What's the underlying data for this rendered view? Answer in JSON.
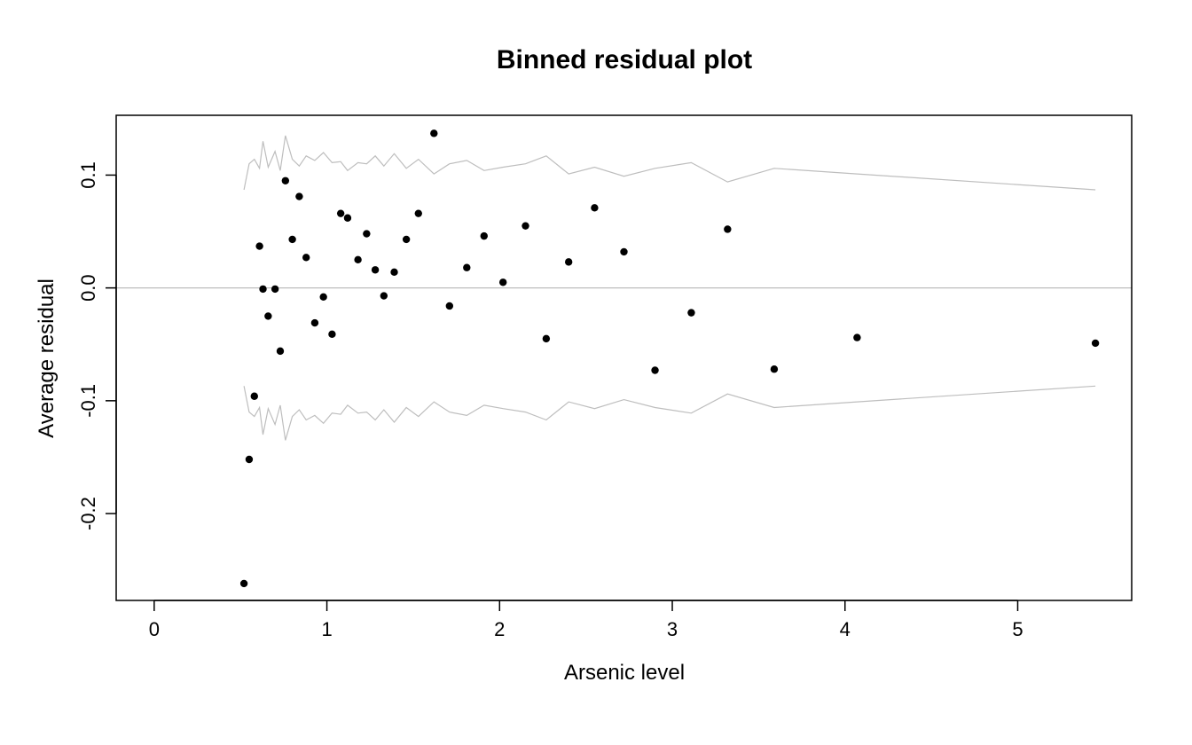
{
  "chart_data": {
    "type": "scatter",
    "title": "Binned residual plot",
    "xlabel": "Arsenic level",
    "ylabel": "Average residual",
    "xlim": [
      -0.22,
      5.66
    ],
    "ylim": [
      -0.277,
      0.153
    ],
    "x_ticks": [
      0,
      1,
      2,
      3,
      4,
      5
    ],
    "x_tick_labels": [
      "0",
      "1",
      "2",
      "3",
      "4",
      "5"
    ],
    "y_ticks": [
      -0.2,
      -0.1,
      0.0,
      0.1
    ],
    "y_tick_labels": [
      "-0.2",
      "-0.1",
      "0.0",
      "0.1"
    ],
    "grid": false,
    "reference_line": {
      "y": 0,
      "color": "#bebebe"
    },
    "colors": {
      "points": "#000000",
      "bounds": "#bebebe",
      "frame": "#000000"
    },
    "points": [
      {
        "x": 0.52,
        "y": -0.262
      },
      {
        "x": 0.55,
        "y": -0.152
      },
      {
        "x": 0.58,
        "y": -0.096
      },
      {
        "x": 0.61,
        "y": 0.037
      },
      {
        "x": 0.63,
        "y": -0.001
      },
      {
        "x": 0.66,
        "y": -0.025
      },
      {
        "x": 0.7,
        "y": -0.001
      },
      {
        "x": 0.73,
        "y": -0.056
      },
      {
        "x": 0.76,
        "y": 0.095
      },
      {
        "x": 0.8,
        "y": 0.043
      },
      {
        "x": 0.84,
        "y": 0.081
      },
      {
        "x": 0.88,
        "y": 0.027
      },
      {
        "x": 0.93,
        "y": -0.031
      },
      {
        "x": 0.98,
        "y": -0.008
      },
      {
        "x": 1.03,
        "y": -0.041
      },
      {
        "x": 1.08,
        "y": 0.066
      },
      {
        "x": 1.12,
        "y": 0.062
      },
      {
        "x": 1.18,
        "y": 0.025
      },
      {
        "x": 1.23,
        "y": 0.048
      },
      {
        "x": 1.28,
        "y": 0.016
      },
      {
        "x": 1.33,
        "y": -0.007
      },
      {
        "x": 1.39,
        "y": 0.014
      },
      {
        "x": 1.46,
        "y": 0.043
      },
      {
        "x": 1.53,
        "y": 0.066
      },
      {
        "x": 1.62,
        "y": 0.137
      },
      {
        "x": 1.71,
        "y": -0.016
      },
      {
        "x": 1.81,
        "y": 0.018
      },
      {
        "x": 1.91,
        "y": 0.046
      },
      {
        "x": 2.02,
        "y": 0.005
      },
      {
        "x": 2.15,
        "y": 0.055
      },
      {
        "x": 2.27,
        "y": -0.045
      },
      {
        "x": 2.4,
        "y": 0.023
      },
      {
        "x": 2.55,
        "y": 0.071
      },
      {
        "x": 2.72,
        "y": 0.032
      },
      {
        "x": 2.9,
        "y": -0.073
      },
      {
        "x": 3.11,
        "y": -0.022
      },
      {
        "x": 3.32,
        "y": 0.052
      },
      {
        "x": 3.59,
        "y": -0.072
      },
      {
        "x": 4.07,
        "y": -0.044
      },
      {
        "x": 5.45,
        "y": -0.049
      }
    ],
    "bounds": {
      "x": [
        0.52,
        0.55,
        0.58,
        0.61,
        0.63,
        0.66,
        0.7,
        0.73,
        0.76,
        0.8,
        0.84,
        0.88,
        0.93,
        0.98,
        1.03,
        1.08,
        1.12,
        1.18,
        1.23,
        1.28,
        1.33,
        1.39,
        1.46,
        1.53,
        1.62,
        1.71,
        1.81,
        1.91,
        2.02,
        2.15,
        2.27,
        2.4,
        2.55,
        2.72,
        2.9,
        3.11,
        3.32,
        3.59,
        4.07,
        5.45
      ],
      "upper": [
        0.087,
        0.11,
        0.114,
        0.106,
        0.13,
        0.107,
        0.121,
        0.104,
        0.135,
        0.114,
        0.108,
        0.117,
        0.113,
        0.12,
        0.111,
        0.112,
        0.104,
        0.111,
        0.11,
        0.117,
        0.108,
        0.119,
        0.106,
        0.114,
        0.101,
        0.11,
        0.113,
        0.104,
        0.107,
        0.11,
        0.117,
        0.101,
        0.107,
        0.099,
        0.106,
        0.111,
        0.094,
        0.106,
        0.101,
        0.087
      ]
    }
  }
}
